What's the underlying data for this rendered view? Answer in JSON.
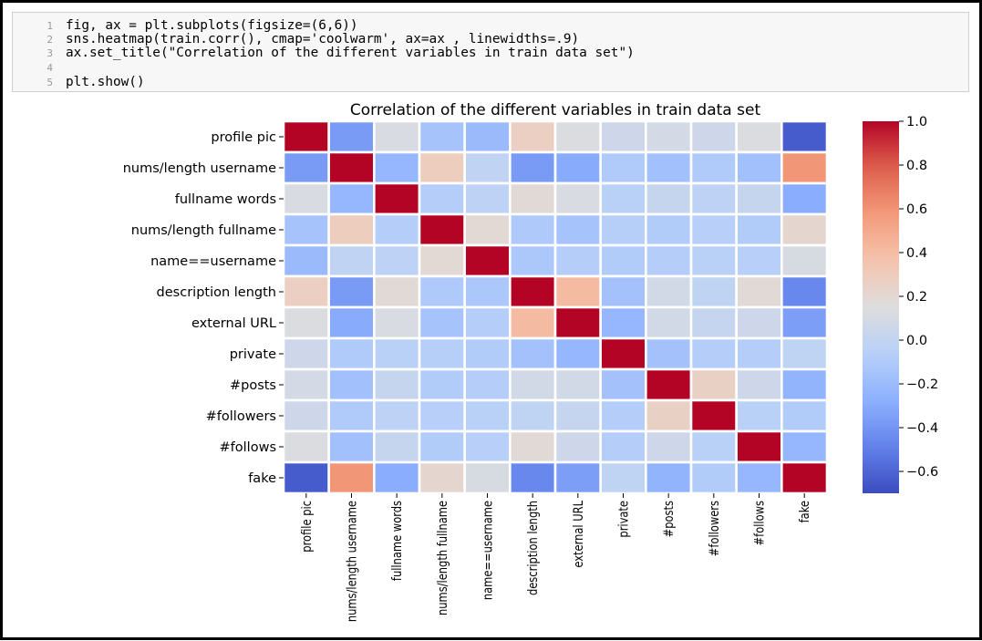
{
  "code": {
    "lines": [
      {
        "num": "1",
        "text": "fig, ax = plt.subplots(figsize=(6,6))"
      },
      {
        "num": "2",
        "text": "sns.heatmap(train.corr(), cmap='coolwarm', ax=ax , linewidths=.9)"
      },
      {
        "num": "3",
        "text": "ax.set_title(\"Correlation of the different variables in train data set\")"
      },
      {
        "num": "4",
        "text": ""
      },
      {
        "num": "5",
        "text": "plt.show()"
      }
    ]
  },
  "chart_data": {
    "type": "heatmap",
    "title": "Correlation of the different variables in train data set",
    "labels": [
      "profile pic",
      "nums/length username",
      "fullname words",
      "nums/length fullname",
      "name==username",
      "description length",
      "external URL",
      "private",
      "#posts",
      "#followers",
      "#follows",
      "fake"
    ],
    "matrix": [
      [
        1.0,
        -0.37,
        0.12,
        -0.15,
        -0.21,
        0.27,
        0.13,
        0.06,
        0.09,
        0.06,
        0.13,
        -0.64
      ],
      [
        -0.37,
        1.0,
        -0.23,
        0.29,
        -0.01,
        -0.37,
        -0.3,
        -0.1,
        -0.17,
        -0.1,
        -0.17,
        0.59
      ],
      [
        0.12,
        -0.23,
        1.0,
        -0.08,
        -0.03,
        0.18,
        0.12,
        -0.05,
        0.02,
        -0.03,
        0.02,
        -0.29
      ],
      [
        -0.15,
        0.29,
        -0.08,
        1.0,
        0.19,
        -0.11,
        -0.15,
        -0.07,
        -0.09,
        -0.06,
        -0.09,
        0.21
      ],
      [
        -0.21,
        -0.01,
        -0.03,
        0.19,
        1.0,
        -0.12,
        -0.08,
        -0.09,
        -0.08,
        -0.05,
        -0.06,
        0.11
      ],
      [
        0.27,
        -0.37,
        0.18,
        -0.11,
        -0.12,
        1.0,
        0.41,
        -0.16,
        0.08,
        -0.02,
        0.18,
        -0.46
      ],
      [
        0.13,
        -0.3,
        0.12,
        -0.15,
        -0.08,
        0.41,
        1.0,
        -0.23,
        0.08,
        0.01,
        0.06,
        -0.36
      ],
      [
        0.06,
        -0.1,
        -0.05,
        -0.07,
        -0.09,
        -0.16,
        -0.23,
        1.0,
        -0.16,
        -0.08,
        -0.08,
        -0.02
      ],
      [
        0.09,
        -0.17,
        0.02,
        -0.09,
        -0.08,
        0.08,
        0.08,
        -0.16,
        1.0,
        0.26,
        0.06,
        -0.25
      ],
      [
        0.06,
        -0.1,
        -0.03,
        -0.06,
        -0.05,
        -0.02,
        0.01,
        -0.08,
        0.26,
        1.0,
        -0.05,
        -0.09
      ],
      [
        0.13,
        -0.17,
        0.02,
        -0.09,
        -0.06,
        0.18,
        0.06,
        -0.08,
        0.06,
        -0.05,
        1.0,
        -0.23
      ],
      [
        -0.64,
        0.59,
        -0.29,
        0.21,
        0.11,
        -0.46,
        -0.36,
        -0.02,
        -0.25,
        -0.09,
        -0.23,
        1.0
      ]
    ],
    "colorbar": {
      "range": [
        -0.7,
        1.0
      ],
      "ticks": [
        1.0,
        0.8,
        0.6,
        0.4,
        0.2,
        0.0,
        -0.2,
        -0.4,
        -0.6
      ],
      "tick_labels": [
        "1.0",
        "0.8",
        "0.6",
        "0.4",
        "0.2",
        "0.0",
        "−0.2",
        "−0.4",
        "−0.6"
      ]
    },
    "colormap": "coolwarm",
    "cell_gap_color": "#ffffff"
  }
}
